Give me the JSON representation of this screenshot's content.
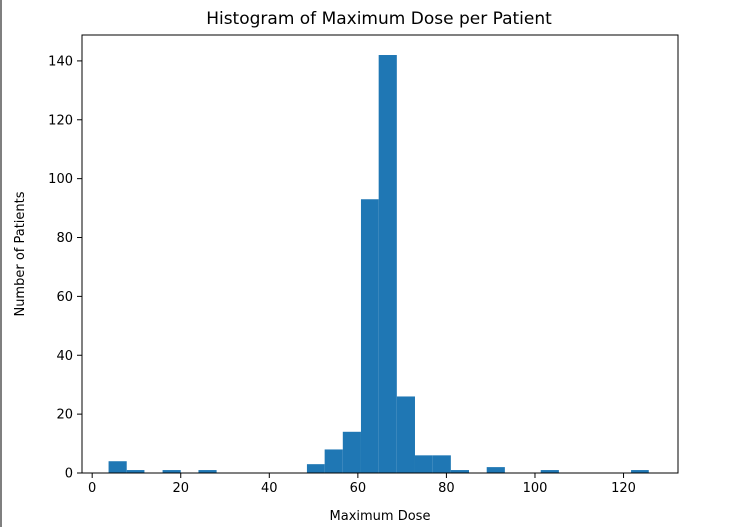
{
  "chart_data": {
    "type": "bar",
    "title": "Histogram of Maximum Dose per Patient",
    "xlabel": "Maximum Dose",
    "ylabel": "Number of Patients",
    "xlim": [
      -2.3,
      132.3
    ],
    "ylim": [
      0,
      148.8
    ],
    "xticks": [
      0,
      20,
      40,
      60,
      80,
      100,
      120
    ],
    "yticks": [
      0,
      20,
      40,
      60,
      80,
      100,
      120,
      140
    ],
    "bar_color": "#1f77b4",
    "bin_width": 4.07,
    "bins": [
      {
        "x0": 3.7,
        "x1": 7.8,
        "value": 4
      },
      {
        "x0": 7.8,
        "x1": 11.8,
        "value": 1
      },
      {
        "x0": 15.9,
        "x1": 20.0,
        "value": 1
      },
      {
        "x0": 24.0,
        "x1": 28.1,
        "value": 1
      },
      {
        "x0": 48.5,
        "x1": 52.5,
        "value": 3
      },
      {
        "x0": 52.5,
        "x1": 56.6,
        "value": 8
      },
      {
        "x0": 56.6,
        "x1": 60.7,
        "value": 14
      },
      {
        "x0": 60.7,
        "x1": 64.7,
        "value": 93
      },
      {
        "x0": 64.7,
        "x1": 68.8,
        "value": 142
      },
      {
        "x0": 68.8,
        "x1": 72.9,
        "value": 26
      },
      {
        "x0": 72.9,
        "x1": 76.9,
        "value": 6
      },
      {
        "x0": 76.9,
        "x1": 81.0,
        "value": 6
      },
      {
        "x0": 81.0,
        "x1": 85.1,
        "value": 1
      },
      {
        "x0": 89.1,
        "x1": 93.2,
        "value": 2
      },
      {
        "x0": 101.3,
        "x1": 105.4,
        "value": 1
      },
      {
        "x0": 121.7,
        "x1": 125.7,
        "value": 1
      }
    ],
    "grid": false,
    "legend": "none"
  }
}
